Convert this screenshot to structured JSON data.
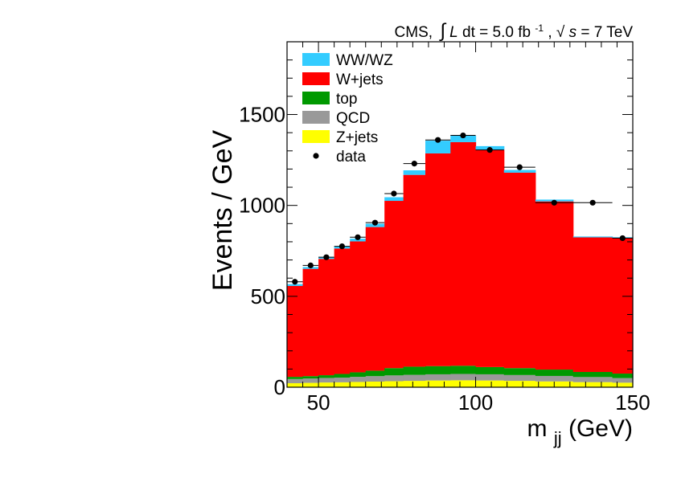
{
  "chart_data": {
    "type": "bar",
    "stacked": true,
    "title": "CMS, ∫L dt = 5.0 fb⁻¹, √s = 7 TeV",
    "title_parts": {
      "cms": "CMS,",
      "integral": "∫",
      "lumi_var": "L",
      "lumi_text": " dt = 5.0 fb",
      "lumi_exp": "-1",
      "comma": ",",
      "sqrt": "√",
      "s_var": "s",
      "energy_text": " = 7 TeV"
    },
    "xlabel": "m",
    "xlabel_sub": "jj",
    "xlabel_unit": " (GeV)",
    "ylabel": "Events / GeV",
    "xlim": [
      40,
      150
    ],
    "ylim": [
      0,
      1900
    ],
    "x_ticks": [
      50,
      100,
      150
    ],
    "y_ticks": [
      0,
      500,
      1000,
      1500
    ],
    "bins": [
      [
        40,
        45
      ],
      [
        45,
        50
      ],
      [
        50,
        55
      ],
      [
        55,
        60
      ],
      [
        60,
        65
      ],
      [
        65,
        71
      ],
      [
        71,
        77
      ],
      [
        77,
        84
      ],
      [
        84,
        92
      ],
      [
        92,
        100
      ],
      [
        100,
        109
      ],
      [
        109,
        119
      ],
      [
        119,
        131
      ],
      [
        131,
        143.5
      ],
      [
        143.5,
        150
      ]
    ],
    "series": [
      {
        "name": "Z+jets",
        "color": "#ffff00",
        "values": [
          22,
          24,
          26,
          27,
          29,
          31,
          33,
          35,
          37,
          38,
          37,
          35,
          32,
          28,
          25
        ]
      },
      {
        "name": "QCD",
        "color": "#999999",
        "values": [
          23,
          24,
          25,
          26,
          28,
          30,
          32,
          33,
          34,
          35,
          34,
          32,
          30,
          28,
          25
        ]
      },
      {
        "name": "top",
        "color": "#009900",
        "values": [
          12,
          13,
          15,
          20,
          25,
          30,
          40,
          45,
          45,
          45,
          40,
          38,
          35,
          28,
          25
        ]
      },
      {
        "name": "W+jets",
        "color": "#ff0000",
        "values": [
          500,
          590,
          640,
          690,
          720,
          790,
          920,
          1055,
          1170,
          1230,
          1195,
          1075,
          925,
          740,
          745
        ]
      },
      {
        "name": "WW/WZ",
        "color": "#33ccff",
        "values": [
          10,
          10,
          10,
          12,
          15,
          18,
          20,
          25,
          70,
          35,
          20,
          15,
          10,
          5,
          5
        ]
      }
    ],
    "data_series": {
      "name": "data",
      "x": [
        42.5,
        47.5,
        52.5,
        57.5,
        62.5,
        68,
        74,
        80.5,
        88,
        96,
        104.5,
        114,
        125,
        137.25,
        146.75
      ],
      "y": [
        580,
        670,
        715,
        775,
        825,
        905,
        1065,
        1230,
        1360,
        1385,
        1305,
        1210,
        1015,
        1015,
        820
      ],
      "x_err": [
        2.5,
        2.5,
        2.5,
        2.5,
        2.5,
        3,
        3,
        3.5,
        4,
        4,
        4.5,
        5,
        6,
        6.25,
        3.25
      ]
    },
    "legend": {
      "placement": "top-left",
      "entries": [
        "WW/WZ",
        "W+jets",
        "top",
        "QCD",
        "Z+jets",
        "data"
      ]
    }
  }
}
